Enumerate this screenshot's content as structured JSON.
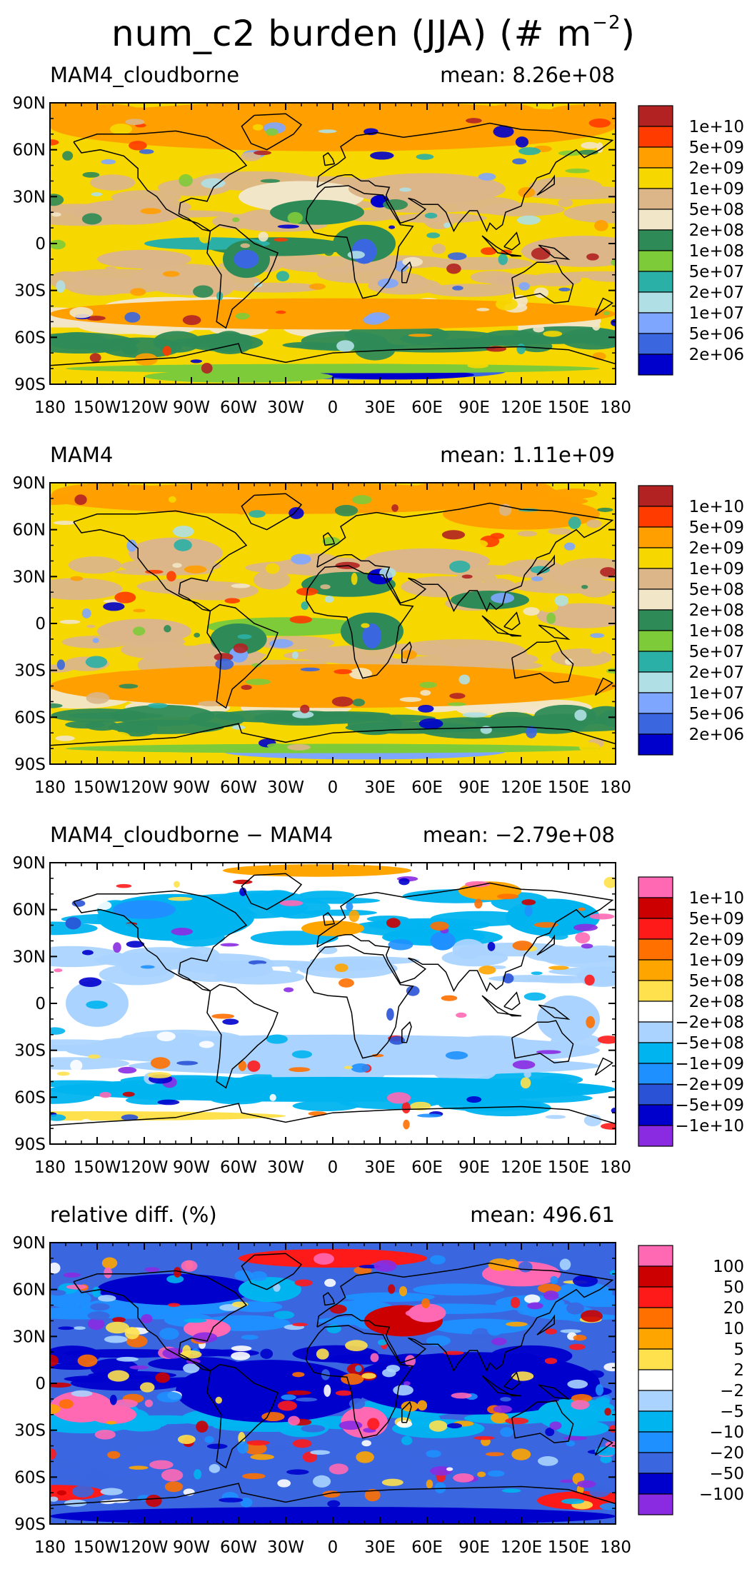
{
  "figure": {
    "title": "num_c2 burden (JJA) (# m",
    "title_exponent": "−2",
    "lat_labels": [
      "90N",
      "60N",
      "30N",
      "0",
      "30S",
      "60S",
      "90S"
    ],
    "lon_labels": [
      "180",
      "150W",
      "120W",
      "90W",
      "60W",
      "30W",
      "0",
      "30E",
      "60E",
      "90E",
      "120E",
      "150E",
      "180"
    ]
  },
  "panels": [
    {
      "id": "p1",
      "title": "MAM4_cloudborne",
      "mean": "mean: 8.26e+08",
      "background": "#f6d800",
      "levels": [
        "1e+10",
        "5e+09",
        "2e+09",
        "1e+09",
        "5e+08",
        "2e+08",
        "1e+08",
        "5e+07",
        "2e+07",
        "1e+07",
        "5e+06",
        "2e+06"
      ],
      "colors": [
        "#b22222",
        "#ff3b00",
        "#ff9f00",
        "#f6d800",
        "#dcb688",
        "#f2e6c8",
        "#2e8b57",
        "#7ecb3a",
        "#2ab0a6",
        "#b0e0e6",
        "#7ea6ff",
        "#3a66e0",
        "#0000cd"
      ]
    },
    {
      "id": "p2",
      "title": "MAM4",
      "mean": "mean: 1.11e+09",
      "background": "#f6d800",
      "levels": [
        "1e+10",
        "5e+09",
        "2e+09",
        "1e+09",
        "5e+08",
        "2e+08",
        "1e+08",
        "5e+07",
        "2e+07",
        "1e+07",
        "5e+06",
        "2e+06"
      ],
      "colors": [
        "#b22222",
        "#ff3b00",
        "#ff9f00",
        "#f6d800",
        "#dcb688",
        "#f2e6c8",
        "#2e8b57",
        "#7ecb3a",
        "#2ab0a6",
        "#b0e0e6",
        "#7ea6ff",
        "#3a66e0",
        "#0000cd"
      ]
    },
    {
      "id": "p3",
      "title": "MAM4_cloudborne − MAM4",
      "mean": "mean: −2.79e+08",
      "background": "#ffffff",
      "levels": [
        "1e+10",
        "5e+09",
        "2e+09",
        "1e+09",
        "5e+08",
        "2e+08",
        "−2e+08",
        "−5e+08",
        "−1e+09",
        "−2e+09",
        "−5e+09",
        "−1e+10"
      ],
      "colors": [
        "#ff69b4",
        "#cc0000",
        "#ff1a1a",
        "#ff7000",
        "#ffa500",
        "#ffe14d",
        "#ffffff",
        "#aad4ff",
        "#00b4f0",
        "#1e90ff",
        "#2a52d6",
        "#0000cd",
        "#8a2be2"
      ]
    },
    {
      "id": "p4",
      "title": "relative diff. (%)",
      "mean": "mean: 496.61",
      "background": "#3a66e0",
      "levels": [
        "100",
        "50",
        "20",
        "10",
        "5",
        "2",
        "−2",
        "−5",
        "−10",
        "−20",
        "−50",
        "−100"
      ],
      "colors": [
        "#ff69b4",
        "#cc0000",
        "#ff1a1a",
        "#ff7000",
        "#ffa500",
        "#ffe14d",
        "#ffffff",
        "#aad4ff",
        "#00b4f0",
        "#1e90ff",
        "#3a66e0",
        "#0000cd",
        "#8a2be2"
      ]
    }
  ]
}
